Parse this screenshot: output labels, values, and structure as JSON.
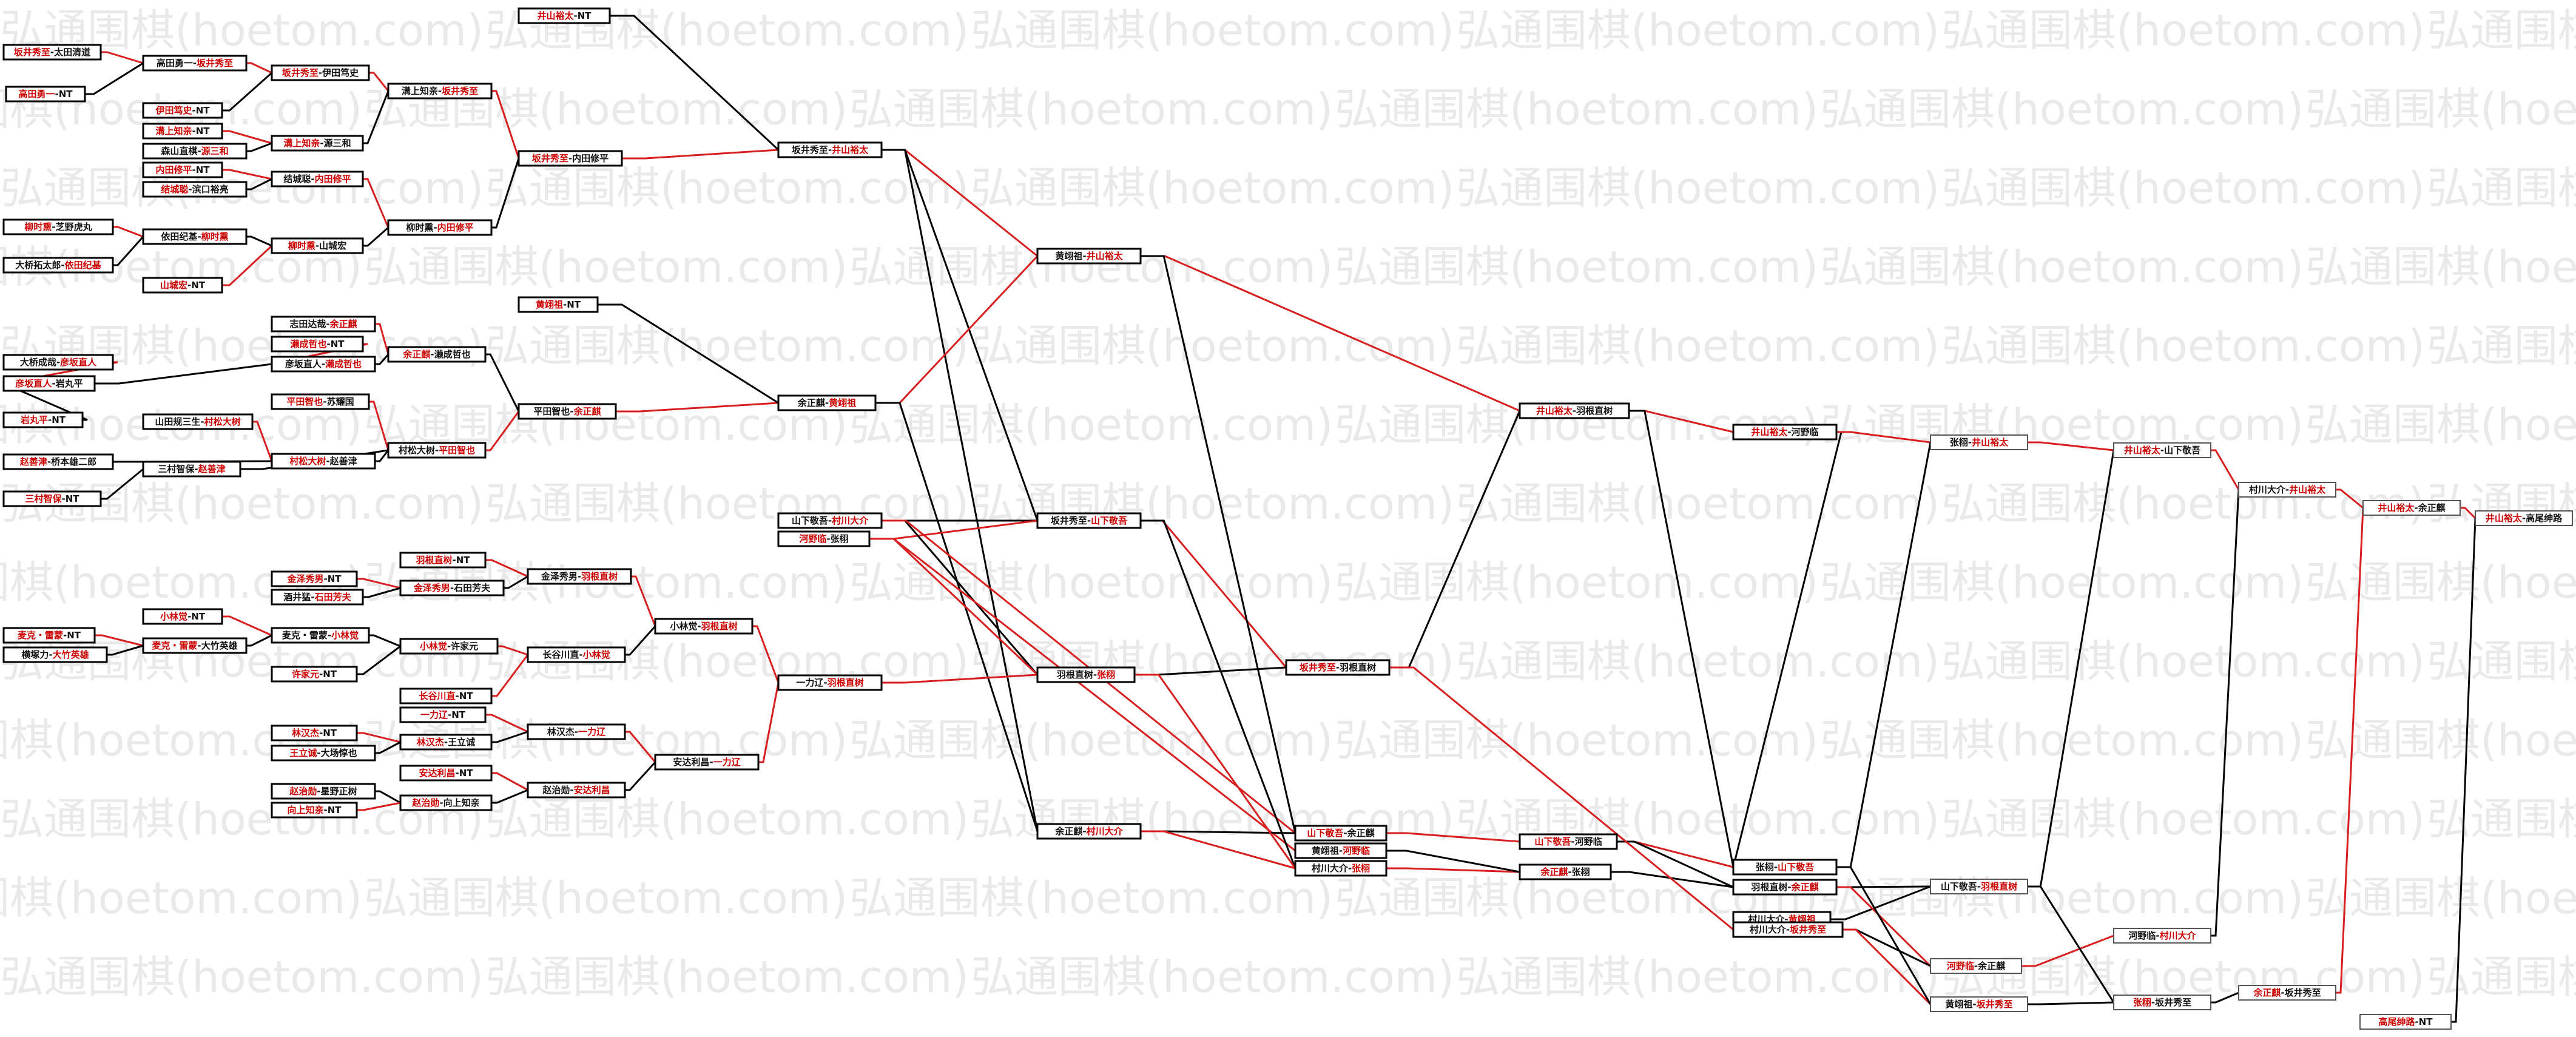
{
  "watermark": "弘通围棋(hoetom.com)",
  "colors": {
    "winner_text": "#cc0000",
    "red_edge": "#d81e1e",
    "black_edge": "#000000",
    "watermark": "#e9e9e9"
  },
  "nodes": [
    {
      "id": "n1",
      "p1": "坂井秀至",
      "p2": "太田清道",
      "w": 1
    },
    {
      "id": "n2",
      "p1": "高田勇一",
      "p2": "NT",
      "w": 1
    },
    {
      "id": "n3",
      "p1": "高田勇一",
      "p2": "坂井秀至",
      "w": 2
    },
    {
      "id": "n4",
      "p1": "伊田笃史",
      "p2": "NT",
      "w": 1
    },
    {
      "id": "n5",
      "p1": "坂井秀至",
      "p2": "伊田笃史",
      "w": 1
    },
    {
      "id": "n6",
      "p1": "溝上知亲",
      "p2": "NT",
      "w": 1
    },
    {
      "id": "n7",
      "p1": "森山直棋",
      "p2": "源三和",
      "w": 2
    },
    {
      "id": "n8",
      "p1": "溝上知亲",
      "p2": "源三和",
      "w": 1
    },
    {
      "id": "n9",
      "p1": "溝上知亲",
      "p2": "坂井秀至",
      "w": 2
    },
    {
      "id": "n10",
      "p1": "内田修平",
      "p2": "NT",
      "w": 1
    },
    {
      "id": "n11",
      "p1": "结城聪",
      "p2": "滨口裕亮",
      "w": 1
    },
    {
      "id": "n12",
      "p1": "结城聪",
      "p2": "内田修平",
      "w": 2
    },
    {
      "id": "n13",
      "p1": "柳时熏",
      "p2": "内田修平",
      "w": 2
    },
    {
      "id": "n14",
      "p1": "坂井秀至",
      "p2": "内田修平",
      "w": 1
    },
    {
      "id": "n15",
      "p1": "井山裕太",
      "p2": "NT",
      "w": 1
    },
    {
      "id": "n16",
      "p1": "坂井秀至",
      "p2": "井山裕太",
      "w": 2
    },
    {
      "id": "n17",
      "p1": "柳时熏",
      "p2": "芝野虎丸",
      "w": 1
    },
    {
      "id": "n18",
      "p1": "大桥拓太郎",
      "p2": "依田纪基",
      "w": 2
    },
    {
      "id": "n19",
      "p1": "依田纪基",
      "p2": "柳时熏",
      "w": 2
    },
    {
      "id": "n20",
      "p1": "山城宏",
      "p2": "NT",
      "w": 1
    },
    {
      "id": "n21",
      "p1": "柳时熏",
      "p2": "山城宏",
      "w": 1
    },
    {
      "id": "n22",
      "p1": "黄翊祖",
      "p2": "井山裕太",
      "w": 2
    },
    {
      "id": "n23",
      "p1": "黄翊祖",
      "p2": "NT",
      "w": 1
    },
    {
      "id": "n24",
      "p1": "志田达哉",
      "p2": "余正麒",
      "w": 2
    },
    {
      "id": "n25",
      "p1": "濑成哲也",
      "p2": "NT",
      "w": 1
    },
    {
      "id": "n26",
      "p1": "彦坂直人",
      "p2": "濑成哲也",
      "w": 2
    },
    {
      "id": "n27",
      "p1": "余正麒",
      "p2": "濑成哲也",
      "w": 1
    },
    {
      "id": "n28",
      "p1": "大桥成哉",
      "p2": "彦坂直人",
      "w": 2
    },
    {
      "id": "n29",
      "p1": "彦坂直人",
      "p2": "岩丸平",
      "w": 1
    },
    {
      "id": "n30",
      "p1": "岩丸平",
      "p2": "NT",
      "w": 1
    },
    {
      "id": "n31",
      "p1": "平田智也",
      "p2": "苏耀国",
      "w": 1
    },
    {
      "id": "n32",
      "p1": "余正麒",
      "p2": "黄翊祖",
      "w": 2
    },
    {
      "id": "n33",
      "p1": "平田智也",
      "p2": "余正麒",
      "w": 2
    },
    {
      "id": "n34",
      "p1": "山田规三生",
      "p2": "村松大树",
      "w": 2
    },
    {
      "id": "n35",
      "p1": "村松大树",
      "p2": "平田智也",
      "w": 2
    },
    {
      "id": "n36",
      "p1": "赵善津",
      "p2": "桥本雄二郎",
      "w": 1
    },
    {
      "id": "n37",
      "p1": "村松大树",
      "p2": "赵善津",
      "w": 1
    },
    {
      "id": "n38",
      "p1": "三村智保",
      "p2": "赵善津",
      "w": 2
    },
    {
      "id": "n39",
      "p1": "三村智保",
      "p2": "NT",
      "w": 1
    },
    {
      "id": "n40",
      "p1": "山下敬吾",
      "p2": "村川大介",
      "w": 2
    },
    {
      "id": "n41",
      "p1": "河野临",
      "p2": "张栩",
      "w": 1
    },
    {
      "id": "n42",
      "p1": "坂井秀至",
      "p2": "山下敬吾",
      "w": 2
    },
    {
      "id": "n43",
      "p1": "羽根直树",
      "p2": "NT",
      "w": 1
    },
    {
      "id": "n44",
      "p1": "金泽秀男",
      "p2": "NT",
      "w": 1
    },
    {
      "id": "n45",
      "p1": "金泽秀男",
      "p2": "石田芳夫",
      "w": 1
    },
    {
      "id": "n46",
      "p1": "金泽秀男",
      "p2": "羽根直树",
      "w": 2
    },
    {
      "id": "n47",
      "p1": "酒井猛",
      "p2": "石田芳夫",
      "w": 2
    },
    {
      "id": "n48",
      "p1": "小林觉",
      "p2": "NT",
      "w": 1
    },
    {
      "id": "n49",
      "p1": "麦克・雷蒙",
      "p2": "小林觉",
      "w": 2
    },
    {
      "id": "n50",
      "p1": "小林觉",
      "p2": "羽根直树",
      "w": 2
    },
    {
      "id": "n51",
      "p1": "麦克・雷蒙",
      "p2": "NT",
      "w": 1
    },
    {
      "id": "n52",
      "p1": "麦克・雷蒙",
      "p2": "大竹英雄",
      "w": 1
    },
    {
      "id": "n53",
      "p1": "横塚力",
      "p2": "大竹英雄",
      "w": 2
    },
    {
      "id": "n54",
      "p1": "小林觉",
      "p2": "许家元",
      "w": 1
    },
    {
      "id": "n55",
      "p1": "许家元",
      "p2": "NT",
      "w": 1
    },
    {
      "id": "n56",
      "p1": "长谷川直",
      "p2": "小林觉",
      "w": 2
    },
    {
      "id": "n57",
      "p1": "长谷川直",
      "p2": "NT",
      "w": 1
    },
    {
      "id": "n58",
      "p1": "一力辽",
      "p2": "羽根直树",
      "w": 2
    },
    {
      "id": "n59",
      "p1": "羽根直树",
      "p2": "张栩",
      "w": 2
    },
    {
      "id": "n60",
      "p1": "一力辽",
      "p2": "NT",
      "w": 1
    },
    {
      "id": "n61",
      "p1": "林汉杰",
      "p2": "一力辽",
      "w": 2
    },
    {
      "id": "n62",
      "p1": "林汉杰",
      "p2": "NT",
      "w": 1
    },
    {
      "id": "n63",
      "p1": "林汉杰",
      "p2": "王立诚",
      "w": 1
    },
    {
      "id": "n64",
      "p1": "王立诚",
      "p2": "大场惇也",
      "w": 1
    },
    {
      "id": "n65",
      "p1": "安达利昌",
      "p2": "一力辽",
      "w": 2
    },
    {
      "id": "n66",
      "p1": "安达利昌",
      "p2": "NT",
      "w": 1
    },
    {
      "id": "n67",
      "p1": "赵治勋",
      "p2": "安达利昌",
      "w": 2
    },
    {
      "id": "n68",
      "p1": "赵治勋",
      "p2": "星野正树",
      "w": 1
    },
    {
      "id": "n69",
      "p1": "赵治勋",
      "p2": "向上知亲",
      "w": 1
    },
    {
      "id": "n70",
      "p1": "向上知亲",
      "p2": "NT",
      "w": 1
    },
    {
      "id": "n71",
      "p1": "余正麒",
      "p2": "村川大介",
      "w": 2
    },
    {
      "id": "n72",
      "p1": "井山裕太",
      "p2": "羽根直树",
      "w": 1
    },
    {
      "id": "n73",
      "p1": "坂井秀至",
      "p2": "羽根直树",
      "w": 1
    },
    {
      "id": "n74",
      "p1": "山下敬吾",
      "p2": "余正麒",
      "w": 1
    },
    {
      "id": "n75",
      "p1": "黄翊祖",
      "p2": "河野临",
      "w": 2
    },
    {
      "id": "n76",
      "p1": "村川大介",
      "p2": "张栩",
      "w": 2
    },
    {
      "id": "n77",
      "p1": "山下敬吾",
      "p2": "河野临",
      "w": 1
    },
    {
      "id": "n78",
      "p1": "余正麒",
      "p2": "张栩",
      "w": 1
    },
    {
      "id": "n79",
      "p1": "井山裕太",
      "p2": "河野临",
      "w": 1
    },
    {
      "id": "n80",
      "p1": "张栩",
      "p2": "山下敬吾",
      "w": 2
    },
    {
      "id": "n81",
      "p1": "羽根直树",
      "p2": "余正麒",
      "w": 2
    },
    {
      "id": "n82",
      "p1": "村川大介",
      "p2": "黄翊祖",
      "w": 2
    },
    {
      "id": "n83",
      "p1": "村川大介",
      "p2": "坂井秀至",
      "w": 2
    },
    {
      "id": "n84",
      "p1": "张栩",
      "p2": "井山裕太",
      "w": 2
    },
    {
      "id": "n85",
      "p1": "山下敬吾",
      "p2": "羽根直树",
      "w": 2
    },
    {
      "id": "n86",
      "p1": "河野临",
      "p2": "余正麒",
      "w": 1
    },
    {
      "id": "n87",
      "p1": "黄翊祖",
      "p2": "坂井秀至",
      "w": 2
    },
    {
      "id": "n88",
      "p1": "井山裕太",
      "p2": "山下敬吾",
      "w": 1
    },
    {
      "id": "n89",
      "p1": "河野临",
      "p2": "村川大介",
      "w": 2
    },
    {
      "id": "n90",
      "p1": "张栩",
      "p2": "坂井秀至",
      "w": 1
    },
    {
      "id": "n91",
      "p1": "村川大介",
      "p2": "井山裕太",
      "w": 2
    },
    {
      "id": "n92",
      "p1": "余正麒",
      "p2": "坂井秀至",
      "w": 1
    },
    {
      "id": "n93",
      "p1": "井山裕太",
      "p2": "余正麒",
      "w": 1
    },
    {
      "id": "n94",
      "p1": "井山裕太",
      "p2": "高尾绅路",
      "w": 1
    },
    {
      "id": "n95",
      "p1": "高尾绅路",
      "p2": "NT",
      "w": 1
    }
  ]
}
